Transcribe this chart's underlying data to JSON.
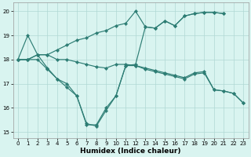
{
  "lineA": {
    "x": [
      0,
      1,
      2,
      3,
      4,
      5,
      6,
      7,
      8,
      9,
      10,
      11,
      12,
      13,
      14,
      15,
      16,
      17,
      18,
      19,
      20,
      21
    ],
    "y": [
      18.0,
      19.0,
      18.2,
      18.2,
      18.4,
      18.6,
      18.8,
      18.9,
      19.1,
      19.2,
      19.4,
      19.5,
      20.0,
      19.35,
      19.3,
      19.6,
      19.4,
      19.8,
      19.9,
      19.95,
      19.95,
      19.9
    ]
  },
  "lineB": {
    "x": [
      0,
      1,
      2,
      3,
      4,
      5,
      6,
      7,
      8,
      9,
      10,
      11,
      12,
      13,
      14,
      15,
      16,
      17,
      18,
      19,
      20,
      21,
      22,
      23
    ],
    "y": [
      18.0,
      18.0,
      18.2,
      18.2,
      18.0,
      18.0,
      17.9,
      17.8,
      17.7,
      17.65,
      17.8,
      17.8,
      17.75,
      17.65,
      17.55,
      17.45,
      17.35,
      17.25,
      17.45,
      17.5,
      16.75,
      16.7,
      16.6,
      16.2
    ]
  },
  "lineC": {
    "x": [
      0,
      1,
      2,
      3,
      4,
      5,
      6,
      7,
      8,
      9,
      10,
      11,
      12,
      13,
      14,
      15,
      16,
      17,
      18,
      19,
      20,
      21
    ],
    "y": [
      18.0,
      18.0,
      18.2,
      17.65,
      17.2,
      17.0,
      16.5,
      15.3,
      15.3,
      16.0,
      16.5,
      17.75,
      17.8,
      19.35,
      19.3,
      19.6,
      19.4,
      19.8,
      19.9,
      19.95,
      19.95,
      19.9
    ]
  },
  "lineD": {
    "x": [
      0,
      1,
      2,
      3,
      4,
      5,
      6,
      7,
      8,
      9,
      10,
      11,
      12,
      13,
      14,
      15,
      16,
      17,
      18,
      19,
      20,
      21,
      22,
      23
    ],
    "y": [
      18.0,
      18.0,
      18.0,
      17.6,
      17.2,
      16.85,
      16.5,
      15.35,
      15.25,
      15.9,
      16.5,
      17.75,
      17.75,
      17.6,
      17.5,
      17.4,
      17.3,
      17.2,
      17.4,
      17.45,
      16.75,
      16.7,
      16.6,
      16.2
    ]
  },
  "color": "#2d7d74",
  "bg_color": "#d9f4f0",
  "grid_color": "#b0d8d4",
  "xlabel": "Humidex (Indice chaleur)",
  "xlim": [
    -0.5,
    23.5
  ],
  "ylim": [
    14.75,
    20.35
  ],
  "xticks": [
    0,
    1,
    2,
    3,
    4,
    5,
    6,
    7,
    8,
    9,
    10,
    11,
    12,
    13,
    14,
    15,
    16,
    17,
    18,
    19,
    20,
    21,
    22,
    23
  ],
  "yticks": [
    15,
    16,
    17,
    18,
    19,
    20
  ],
  "xlabel_fontsize": 6.5,
  "tick_fontsize": 5.0,
  "marker_size": 2.2,
  "linewidth": 0.85
}
